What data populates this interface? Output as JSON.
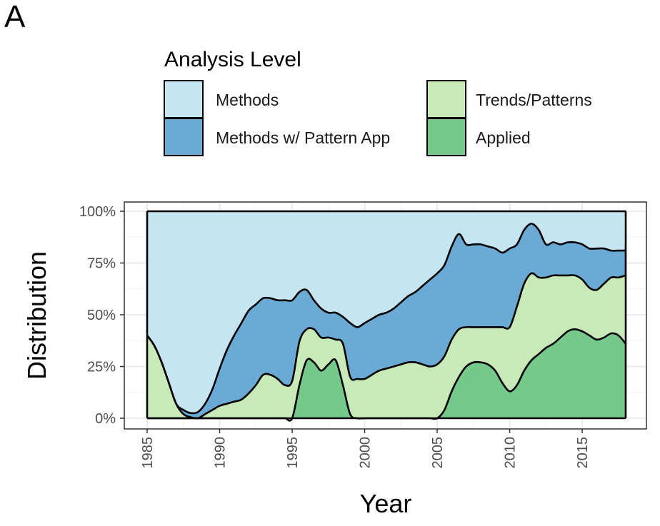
{
  "panel_label": "A",
  "chart_data": {
    "type": "area",
    "stacked": "percent",
    "xlabel": "Year",
    "ylabel": "Distribution",
    "xlim": [
      1985,
      2018
    ],
    "ylim": [
      0,
      1
    ],
    "x_ticks": [
      1985,
      1990,
      1995,
      2000,
      2005,
      2010,
      2015
    ],
    "y_ticks": [
      "0%",
      "25%",
      "50%",
      "75%",
      "100%"
    ],
    "grid": true,
    "legend": {
      "title": "Analysis Level",
      "placement": "top",
      "entries": [
        "Methods",
        "Trends/Patterns",
        "Methods w/ Pattern App",
        "Applied"
      ]
    },
    "x": [
      1985,
      1985.5,
      1986,
      1986.5,
      1987,
      1987.5,
      1988,
      1988.5,
      1989,
      1989.5,
      1990,
      1990.5,
      1991,
      1991.5,
      1992,
      1992.5,
      1993,
      1993.5,
      1994,
      1994.5,
      1995,
      1995.5,
      1996,
      1996.5,
      1997,
      1997.5,
      1998,
      1998.5,
      1999,
      1999.5,
      2000,
      2000.5,
      2001,
      2001.5,
      2002,
      2002.5,
      2003,
      2003.5,
      2004,
      2004.5,
      2005,
      2005.5,
      2006,
      2006.5,
      2007,
      2007.5,
      2008,
      2008.5,
      2009,
      2009.5,
      2010,
      2010.5,
      2011,
      2011.5,
      2012,
      2012.5,
      2013,
      2013.5,
      2014,
      2014.5,
      2015,
      2015.5,
      2016,
      2016.5,
      2017,
      2017.5,
      2018
    ],
    "series": [
      {
        "name": "Applied",
        "color": "#74c98b",
        "values": [
          0,
          0,
          0,
          0,
          0,
          0,
          0,
          0,
          0,
          0,
          0,
          0,
          0,
          0,
          0,
          0,
          0,
          0,
          0,
          0,
          0,
          0.16,
          0.28,
          0.27,
          0.23,
          0.26,
          0.28,
          0.16,
          0.02,
          0,
          0,
          0,
          0,
          0,
          0,
          0,
          0,
          0,
          0,
          0,
          0,
          0.04,
          0.13,
          0.2,
          0.25,
          0.27,
          0.27,
          0.26,
          0.23,
          0.17,
          0.13,
          0.16,
          0.23,
          0.28,
          0.31,
          0.34,
          0.36,
          0.39,
          0.42,
          0.43,
          0.42,
          0.4,
          0.38,
          0.39,
          0.41,
          0.4,
          0.36
        ]
      },
      {
        "name": "Trends/Patterns",
        "color": "#c8eab8",
        "values": [
          0.4,
          0.35,
          0.27,
          0.17,
          0.07,
          0.02,
          0.005,
          0,
          0.02,
          0.04,
          0.06,
          0.07,
          0.08,
          0.09,
          0.12,
          0.16,
          0.21,
          0.21,
          0.19,
          0.16,
          0.18,
          0.21,
          0.15,
          0.16,
          0.16,
          0.13,
          0.1,
          0.2,
          0.18,
          0.19,
          0.19,
          0.21,
          0.23,
          0.24,
          0.25,
          0.26,
          0.27,
          0.27,
          0.26,
          0.25,
          0.26,
          0.26,
          0.25,
          0.23,
          0.19,
          0.17,
          0.17,
          0.18,
          0.21,
          0.27,
          0.31,
          0.38,
          0.42,
          0.42,
          0.37,
          0.34,
          0.33,
          0.3,
          0.27,
          0.26,
          0.25,
          0.23,
          0.24,
          0.26,
          0.27,
          0.28,
          0.33
        ]
      },
      {
        "name": "Methods w/ Pattern App",
        "color": "#6aaad4",
        "values": [
          0,
          0,
          0,
          0,
          0,
          0.02,
          0.02,
          0.03,
          0.05,
          0.1,
          0.18,
          0.26,
          0.32,
          0.37,
          0.4,
          0.39,
          0.37,
          0.37,
          0.38,
          0.41,
          0.39,
          0.24,
          0.19,
          0.14,
          0.14,
          0.12,
          0.13,
          0.13,
          0.26,
          0.25,
          0.27,
          0.27,
          0.27,
          0.27,
          0.28,
          0.3,
          0.32,
          0.34,
          0.38,
          0.42,
          0.44,
          0.44,
          0.45,
          0.46,
          0.4,
          0.4,
          0.4,
          0.39,
          0.38,
          0.36,
          0.38,
          0.3,
          0.26,
          0.24,
          0.23,
          0.16,
          0.16,
          0.15,
          0.16,
          0.16,
          0.17,
          0.19,
          0.2,
          0.17,
          0.13,
          0.13,
          0.12
        ]
      },
      {
        "name": "Methods",
        "color": "#c6e5f2",
        "values": [
          0.6,
          0.65,
          0.73,
          0.83,
          0.93,
          0.96,
          0.975,
          0.97,
          0.93,
          0.86,
          0.76,
          0.67,
          0.6,
          0.54,
          0.48,
          0.45,
          0.42,
          0.42,
          0.43,
          0.43,
          0.43,
          0.39,
          0.38,
          0.43,
          0.47,
          0.49,
          0.49,
          0.51,
          0.54,
          0.56,
          0.54,
          0.52,
          0.5,
          0.49,
          0.47,
          0.44,
          0.41,
          0.39,
          0.36,
          0.33,
          0.3,
          0.26,
          0.17,
          0.11,
          0.16,
          0.16,
          0.16,
          0.17,
          0.18,
          0.2,
          0.18,
          0.16,
          0.09,
          0.06,
          0.09,
          0.16,
          0.15,
          0.16,
          0.15,
          0.15,
          0.16,
          0.18,
          0.18,
          0.18,
          0.19,
          0.19,
          0.19
        ]
      }
    ]
  }
}
